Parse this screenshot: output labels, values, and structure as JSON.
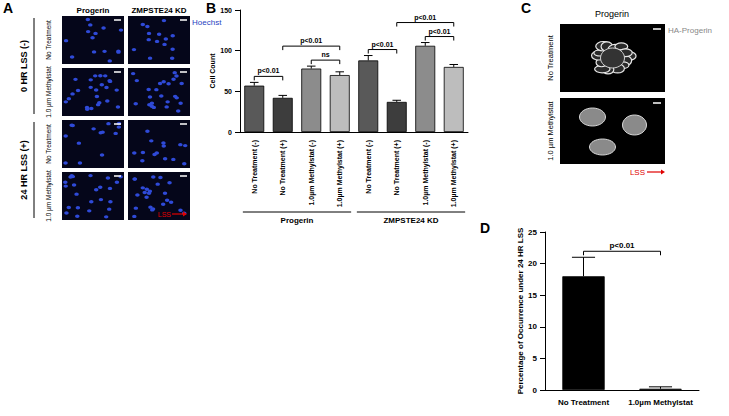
{
  "panel_a": {
    "label": "A",
    "columns": [
      "Progerin",
      "ZMPSTE24 KD"
    ],
    "stain": "Hoechst",
    "groups": [
      {
        "label": "0 HR LSS (-)",
        "rows": [
          "No Treatment",
          "1.0 µm Methylstat"
        ]
      },
      {
        "label": "24 HR LSS (+)",
        "rows": [
          "No Treatment",
          "1.0 µm Methylstat"
        ]
      }
    ],
    "flow_label": "LSS"
  },
  "panel_c": {
    "label": "C",
    "title": "Progerin",
    "stain": "HA-Progerin",
    "rows": [
      "No Treatment",
      "1.0 µm Methylstat"
    ],
    "flow_label": "LSS"
  },
  "chart_data": [
    {
      "type": "bar",
      "panel_label": "B",
      "y_label": "Cell Count",
      "categories": [
        "No Treatment (-)",
        "No Treatment (+)",
        "1.0µm Methylstat (-)",
        "1.0µm Methylstat (+)",
        "No Treatment (-)",
        "No Treatment (+)",
        "1.0µm Methylstat (-)",
        "1.0µm Methylstat (+)"
      ],
      "values": [
        57,
        42,
        78,
        70,
        88,
        37,
        106,
        80
      ],
      "errors": [
        4,
        3,
        3,
        4,
        6,
        2,
        4,
        3
      ],
      "colors": [
        "#595959",
        "#3d3d3d",
        "#8c8c8c",
        "#bdbdbd",
        "#595959",
        "#3d3d3d",
        "#8c8c8c",
        "#bdbdbd"
      ],
      "groups": [
        {
          "label": "Progerin",
          "count": 4
        },
        {
          "label": "ZMPSTE24 KD",
          "count": 4
        }
      ],
      "significance": [
        {
          "between": [
            0,
            1
          ],
          "label": "p<0.01"
        },
        {
          "between": [
            2,
            3
          ],
          "label": "ns"
        },
        {
          "between": [
            1,
            3
          ],
          "label": "p<0.01"
        },
        {
          "between": [
            4,
            5
          ],
          "label": "p<0.01"
        },
        {
          "between": [
            6,
            7
          ],
          "label": "p<0.01"
        },
        {
          "between": [
            5,
            7
          ],
          "label": "p<0.01"
        }
      ],
      "ylim": [
        0,
        150
      ],
      "yticks": [
        0,
        50,
        100,
        150
      ],
      "grid": false
    },
    {
      "type": "bar",
      "panel_label": "D",
      "y_label": "Percentage of Occurrence under 24 HR LSS",
      "categories": [
        "No Treatment",
        "1.0µm Methylstat"
      ],
      "values": [
        18,
        0.2
      ],
      "errors": [
        3,
        0.3
      ],
      "color": "#000000",
      "significance": [
        {
          "between": [
            0,
            1
          ],
          "label": "p<0.01"
        }
      ],
      "ylim": [
        0,
        25
      ],
      "yticks": [
        0,
        5,
        10,
        15,
        20,
        25
      ],
      "grid": false
    }
  ]
}
